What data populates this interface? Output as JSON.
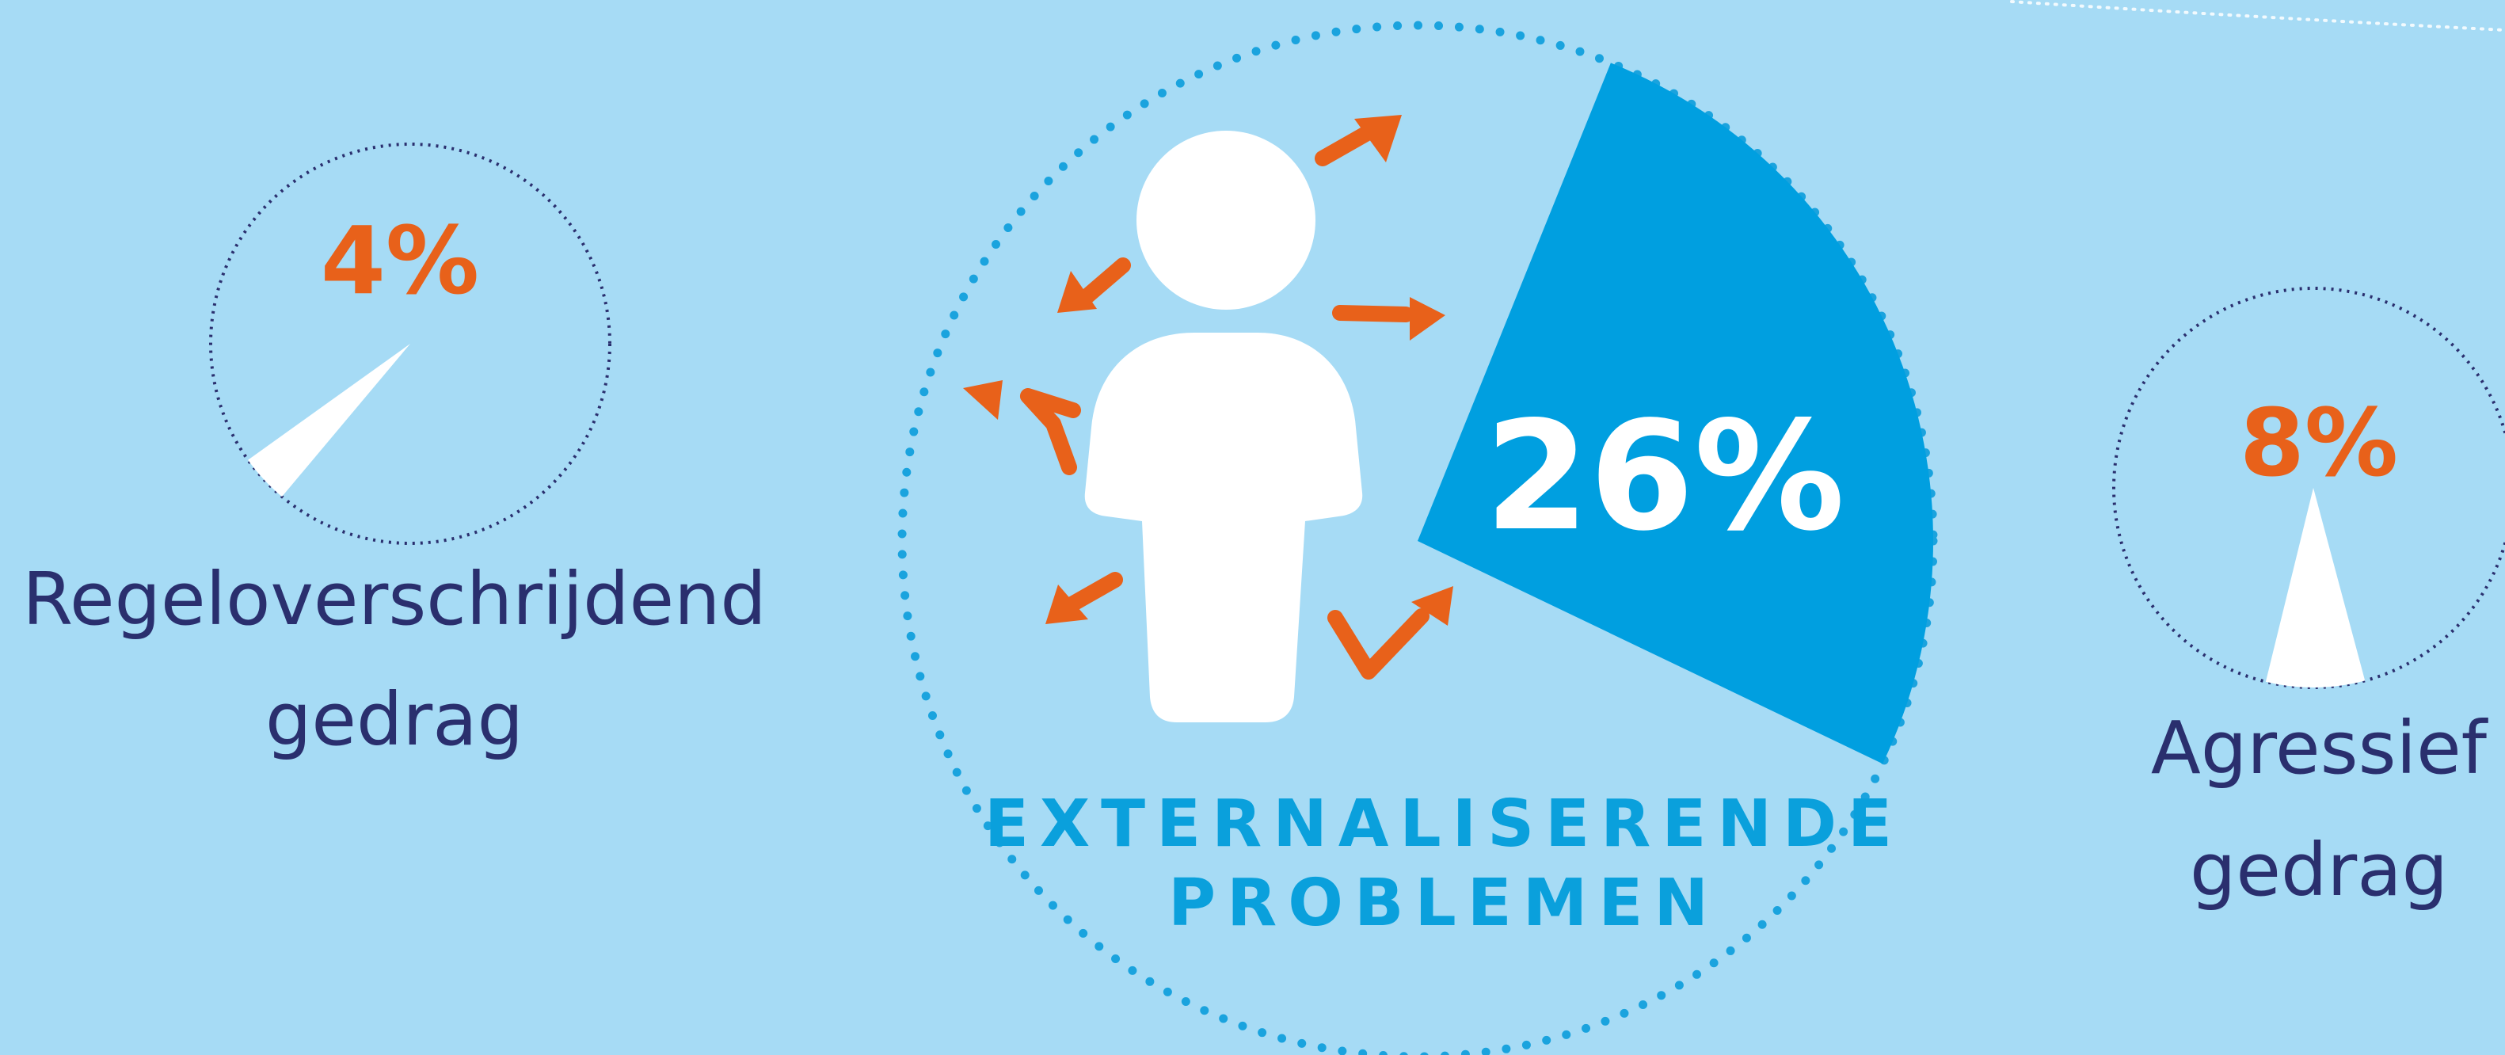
{
  "chart_data": [
    {
      "type": "pie",
      "value": 26,
      "value_label": "26%",
      "label_lines": [
        "EXTERNALISERENDE",
        "PROBLEMEN"
      ]
    },
    {
      "type": "pie",
      "value": 4,
      "value_label": "4%",
      "label_lines": [
        "Regeloverschrijdend",
        "gedrag"
      ]
    },
    {
      "type": "pie",
      "value": 8,
      "value_label": "8%",
      "label_lines": [
        "Agressief",
        "gedrag"
      ]
    }
  ],
  "colors": {
    "background": "#a6dbf5",
    "main_slice": "#009fe0",
    "small_slice": "#ffffff",
    "percent_accent": "#e8611a",
    "label_text": "#2a2f6e",
    "main_label": "#0aa0dc",
    "arrows": "#e8611a",
    "person": "#ffffff"
  },
  "icons": [
    "person-icon",
    "arrow-icon"
  ]
}
